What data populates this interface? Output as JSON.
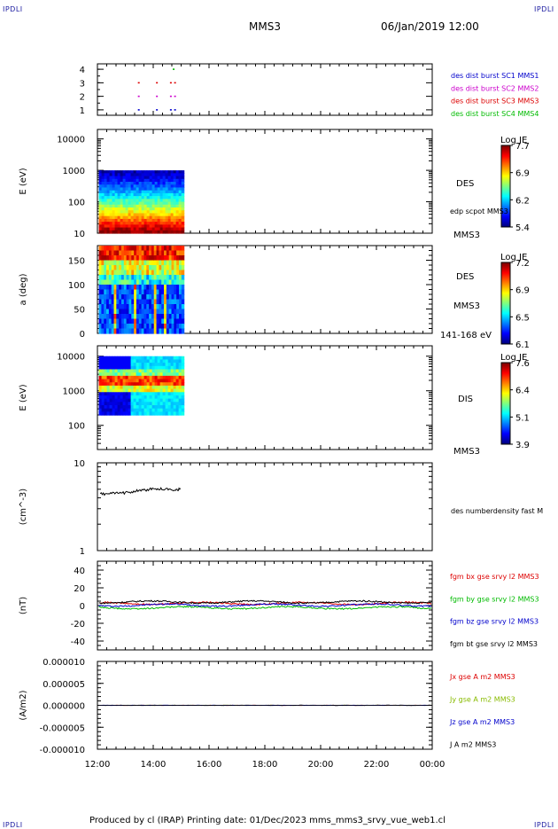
{
  "header": {
    "corner_left": "IPDLI",
    "corner_right": "IPDLI",
    "spacecraft": "MMS3",
    "datetime": "06/Jan/2019 12:00"
  },
  "footer": {
    "text": "Produced by cl (IRAP)   Printing date: 01/Dec/2023   mms_mms3_srvy_vue_web1.cl",
    "corner_left": "IPDLI",
    "corner_right": "IPDLI"
  },
  "time_axis": {
    "ticks": [
      "12:00",
      "14:00",
      "16:00",
      "18:00",
      "20:00",
      "22:00",
      "00:00"
    ],
    "range_hours": [
      12,
      24
    ]
  },
  "chart_data": [
    {
      "type": "scatter",
      "panel": "burst-availability",
      "ylabel": "",
      "yticks": [
        "1",
        "2",
        "3",
        "4"
      ],
      "ylim": [
        0.6,
        4.4
      ],
      "series": [
        {
          "name": "des dist burst SC1 MMS1",
          "color": "#0000cc",
          "y": 1,
          "x_hours": [
            13.45,
            14.1,
            14.6,
            14.75
          ]
        },
        {
          "name": "des dist burst SC2 MMS2",
          "color": "#cc00cc",
          "y": 2,
          "x_hours": [
            13.45,
            14.1,
            14.6,
            14.75
          ]
        },
        {
          "name": "des dist burst SC3 MMS3",
          "color": "#dd0000",
          "y": 3,
          "x_hours": [
            13.45,
            14.1,
            14.6,
            14.75
          ]
        },
        {
          "name": "des dist burst SC4 MMS4",
          "color": "#00bb00",
          "y": 4,
          "x_hours": [
            14.7
          ]
        }
      ]
    },
    {
      "type": "heatmap",
      "panel": "des-energy",
      "ylabel": "E (eV)",
      "yscale": "log",
      "yticks": [
        "10",
        "100",
        "1000",
        "10000"
      ],
      "ylim": [
        10,
        20000
      ],
      "x_range_hours": [
        12.05,
        15.1
      ],
      "data_extent_log": [
        1.0,
        3.0
      ],
      "colorbar": {
        "title": "Log JE",
        "ticks": [
          "7.7",
          "6.9",
          "6.2",
          "5.4"
        ],
        "range": [
          5.4,
          7.7
        ]
      },
      "labels": {
        "instrument": "DES",
        "overlay": "edp scpot MMS3",
        "spacecraft": "MMS3"
      }
    },
    {
      "type": "heatmap",
      "panel": "des-pitch-angle",
      "ylabel": "a (deg)",
      "yticks": [
        "0",
        "50",
        "100",
        "150"
      ],
      "ylim": [
        0,
        180
      ],
      "x_range_hours": [
        12.05,
        15.1
      ],
      "colorbar": {
        "title": "Log JE",
        "ticks": [
          "7.2",
          "6.9",
          "6.5",
          "6.1"
        ],
        "range": [
          6.1,
          7.2
        ]
      },
      "labels": {
        "instrument": "DES",
        "spacecraft": "MMS3",
        "energy_range": "141-168 eV"
      }
    },
    {
      "type": "heatmap",
      "panel": "dis-energy",
      "ylabel": "E (eV)",
      "yscale": "log",
      "yticks": [
        "100",
        "1000",
        "10000"
      ],
      "ylim": [
        20,
        20000
      ],
      "x_range_hours": [
        12.05,
        15.1
      ],
      "data_extent_log": [
        2.3,
        4.0
      ],
      "colorbar": {
        "title": "Log JE",
        "ticks": [
          "7.6",
          "6.4",
          "5.1",
          "3.9"
        ],
        "range": [
          3.9,
          7.6
        ]
      },
      "labels": {
        "instrument": "DIS",
        "spacecraft": "MMS3"
      }
    },
    {
      "type": "line",
      "panel": "density",
      "ylabel": "(cm^-3)",
      "yscale": "log",
      "yticks": [
        "1",
        "10"
      ],
      "ylim": [
        1,
        10
      ],
      "series": [
        {
          "name": "des numberdensity fast M",
          "color": "#000000",
          "x_hours": [
            12.1,
            12.4,
            12.7,
            13.0,
            13.3,
            13.6,
            13.9,
            14.2,
            14.5,
            14.8,
            15.0
          ],
          "values": [
            4.4,
            4.45,
            4.5,
            4.55,
            4.75,
            4.85,
            5.0,
            5.05,
            5.0,
            4.95,
            5.0
          ]
        }
      ]
    },
    {
      "type": "line",
      "panel": "magnetic-field",
      "ylabel": "(nT)",
      "yticks": [
        "-40",
        "-20",
        "0",
        "20",
        "40"
      ],
      "ylim": [
        -50,
        50
      ],
      "series": [
        {
          "name": "fgm bx gse srvy l2 MMS3",
          "color": "#dd0000",
          "base": 2.5
        },
        {
          "name": "fgm by gse srvy l2 MMS3",
          "color": "#00bb00",
          "base": -2.5
        },
        {
          "name": "fgm bz gse srvy l2 MMS3",
          "color": "#0000cc",
          "base": 0.5
        },
        {
          "name": "fgm bt gse srvy l2 MMS3",
          "color": "#000000",
          "base": 4.0
        }
      ]
    },
    {
      "type": "line",
      "panel": "current-density",
      "ylabel": "(A/m2)",
      "yticks": [
        "0.000010",
        "0.000005",
        "0.000000",
        "-0.000005",
        "-0.000010"
      ],
      "ylim": [
        -1e-05,
        1e-05
      ],
      "series": [
        {
          "name": "Jx gse A m2 MMS3",
          "color": "#dd0000",
          "value": 0
        },
        {
          "name": "Jy gse A m2 MMS3",
          "color": "#88bb00",
          "value": 0
        },
        {
          "name": "Jz gse A m2 MMS3",
          "color": "#0000cc",
          "value": 0
        },
        {
          "name": "J A m2 MMS3",
          "color": "#000000",
          "value": 0
        }
      ]
    }
  ]
}
